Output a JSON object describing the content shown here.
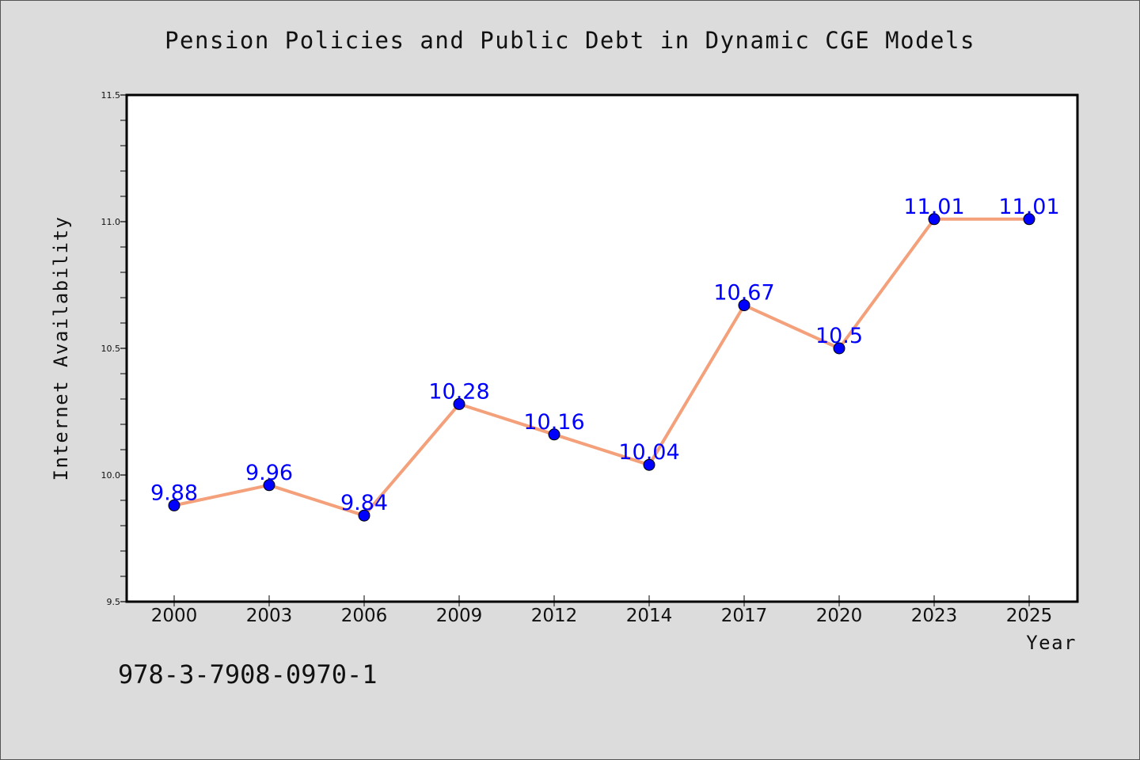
{
  "chart_data": {
    "type": "line",
    "title": "Pension Policies and Public Debt in Dynamic CGE Models",
    "xlabel": "Year",
    "ylabel": "Internet Availability",
    "categories": [
      "2000",
      "2003",
      "2006",
      "2009",
      "2012",
      "2014",
      "2017",
      "2020",
      "2023",
      "2025"
    ],
    "series": [
      {
        "values": [
          9.88,
          9.96,
          9.84,
          10.28,
          10.16,
          10.04,
          10.67,
          10.5,
          11.01,
          11.01
        ],
        "data_labels": [
          "9.88",
          "9.96",
          "9.84",
          "10.28",
          "10.16",
          "10.04",
          "10.67",
          "10.5",
          "11.01",
          "11.01"
        ],
        "line_color": "#f4a07a",
        "marker_color": "#0000ff"
      }
    ],
    "ylim": [
      9.5,
      11.5
    ],
    "yticks": [
      "9.5",
      "10.0",
      "10.5",
      "11.0",
      "11.5"
    ],
    "ytick_values": [
      9.5,
      10.0,
      10.5,
      11.0,
      11.5
    ],
    "minor_ytick_step": 0.1,
    "grid": false,
    "legend": "none",
    "label_color": "#0000ff",
    "background_color": "#dcdcdc",
    "plot_background_color": "#ffffff"
  },
  "footer": {
    "isbn": "978-3-7908-0970-1"
  }
}
